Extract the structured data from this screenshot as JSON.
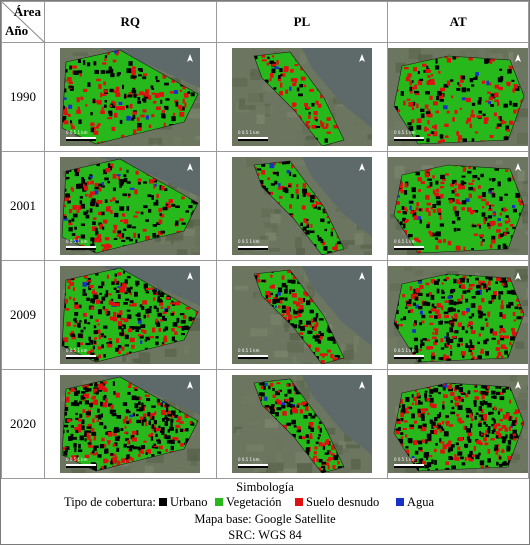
{
  "table": {
    "corner_top": "Área",
    "corner_bottom": "Año",
    "columns": [
      "RQ",
      "PL",
      "AT"
    ],
    "years": [
      "1990",
      "2001",
      "2009",
      "2020"
    ]
  },
  "maps": {
    "north_symbol": "north-arrow",
    "scale_text": "0   0.5   1 km"
  },
  "legend": {
    "title": "Simbología",
    "coverage_label": "Tipo de cobertura:",
    "classes": [
      {
        "label": "Urbano",
        "color": "#000000"
      },
      {
        "label": "Vegetación",
        "color": "#27b81b"
      },
      {
        "label": "Suelo desnudo",
        "color": "#e01010"
      },
      {
        "label": "Agua",
        "color": "#1730c8"
      }
    ],
    "basemap": "Mapa base: Google Satellite",
    "crs": "SRC: WGS 84"
  },
  "colors": {
    "urbano": "#000000",
    "vegetacion": "#27b81b",
    "suelo": "#e01010",
    "agua": "#1730c8",
    "satellite_land": "#6b7560",
    "satellite_water": "#5e6a6a"
  }
}
